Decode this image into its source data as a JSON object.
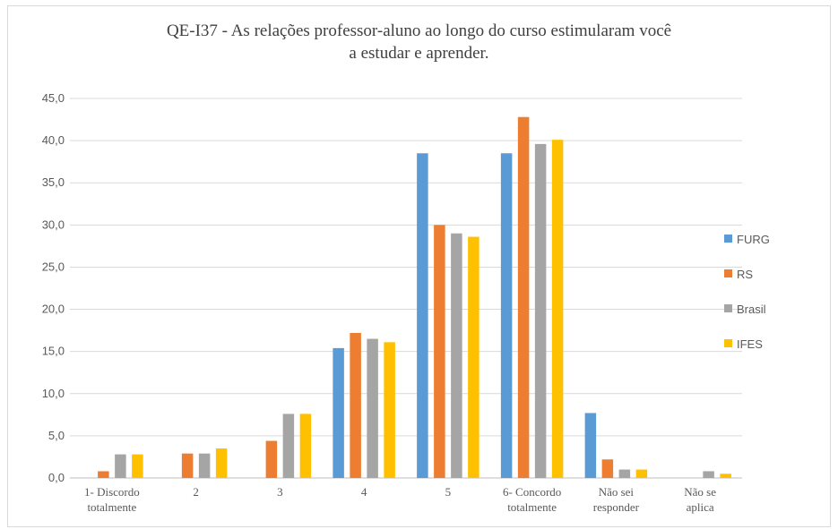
{
  "chart_data": {
    "type": "bar",
    "title_lines": [
      "QE-I37 - As relações professor-aluno ao longo  do curso estimularam você",
      "a estudar e aprender."
    ],
    "categories": [
      [
        "1- Discordo",
        "totalmente"
      ],
      [
        "2"
      ],
      [
        "3"
      ],
      [
        "4"
      ],
      [
        "5"
      ],
      [
        "6- Concordo",
        "totalmente"
      ],
      [
        "Não sei",
        "responder"
      ],
      [
        "Não se",
        "aplica"
      ]
    ],
    "series": [
      {
        "name": "FURG",
        "color": "#5b9bd5",
        "values": [
          0.0,
          0.0,
          0.0,
          15.4,
          38.5,
          38.5,
          7.7,
          0.0
        ]
      },
      {
        "name": "RS",
        "color": "#ed7d31",
        "values": [
          0.8,
          2.9,
          4.4,
          17.2,
          30.0,
          42.8,
          2.2,
          0.0
        ]
      },
      {
        "name": "Brasil",
        "color": "#a5a5a5",
        "values": [
          2.8,
          2.9,
          7.6,
          16.5,
          29.0,
          39.6,
          1.0,
          0.8
        ]
      },
      {
        "name": "IFES",
        "color": "#ffc000",
        "values": [
          2.8,
          3.5,
          7.6,
          16.1,
          28.6,
          40.1,
          1.0,
          0.5
        ]
      }
    ],
    "yticks": [
      "0,0",
      "5,0",
      "10,0",
      "15,0",
      "20,0",
      "25,0",
      "30,0",
      "35,0",
      "40,0",
      "45,0"
    ],
    "ylim": [
      0,
      45
    ],
    "ystep": 5,
    "grid": true,
    "legend_position": "right"
  }
}
